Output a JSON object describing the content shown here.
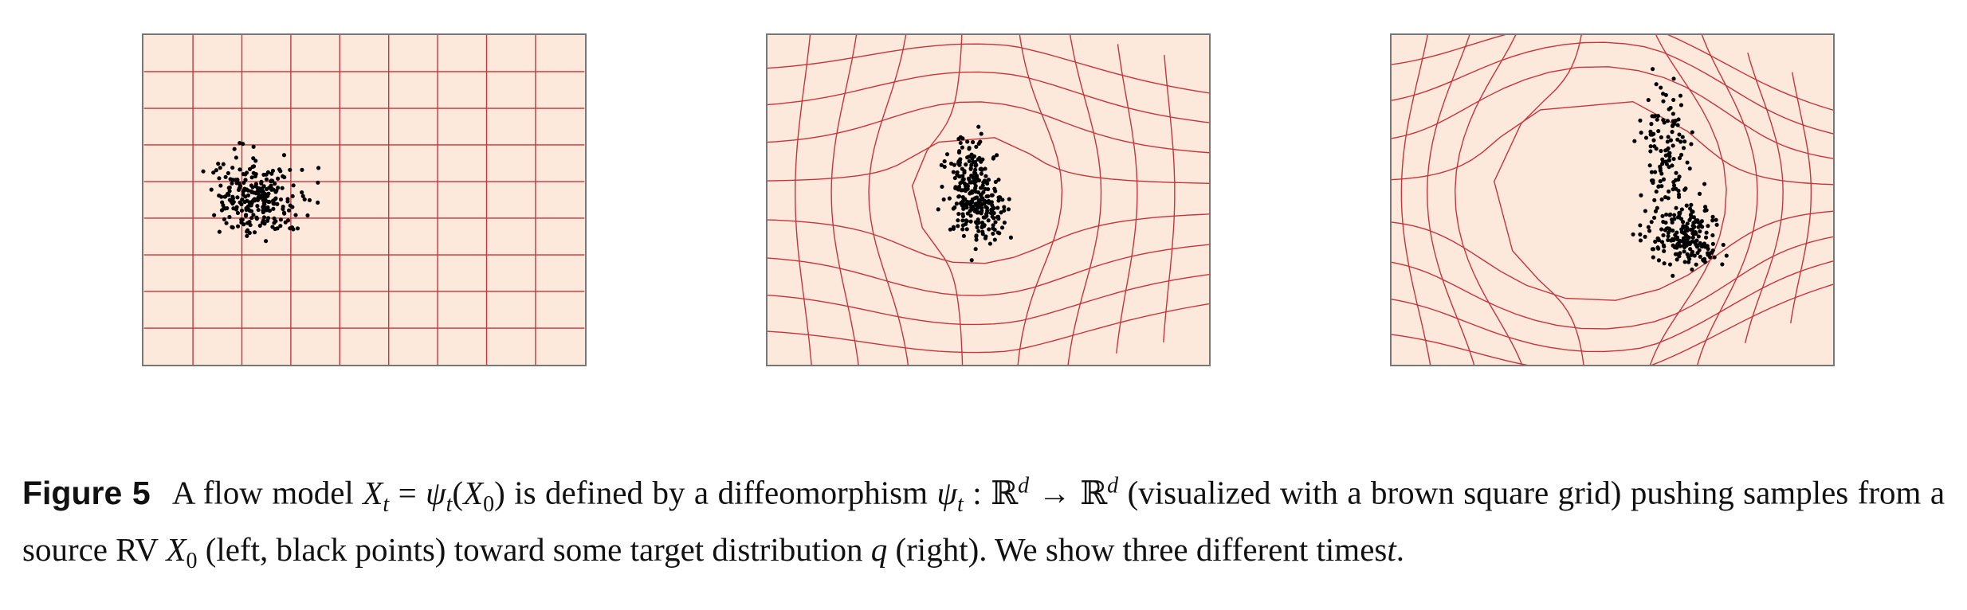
{
  "figure": {
    "panels": [
      {
        "key": "left"
      },
      {
        "key": "mid"
      },
      {
        "key": "right"
      }
    ],
    "colors": {
      "background": "#fde9dc",
      "grid": "#c8323a",
      "points": "#000000",
      "frame": "#777777"
    }
  },
  "caption": {
    "label": "Figure 5",
    "seg1": "A flow model",
    "math1": "X_t = ψ_t(X_0)",
    "seg2": "is defined by a diffeomorphism",
    "math2": "ψ_t : ℝ^d → ℝ^d",
    "seg3": "(visualized with a brown square grid) pushing samples from a source RV",
    "math3": "X_0",
    "seg4": "(left, black points) toward some target distribution",
    "math4": "q",
    "seg5": "(right). We show three different times",
    "math5": "t",
    "seg6": "."
  }
}
